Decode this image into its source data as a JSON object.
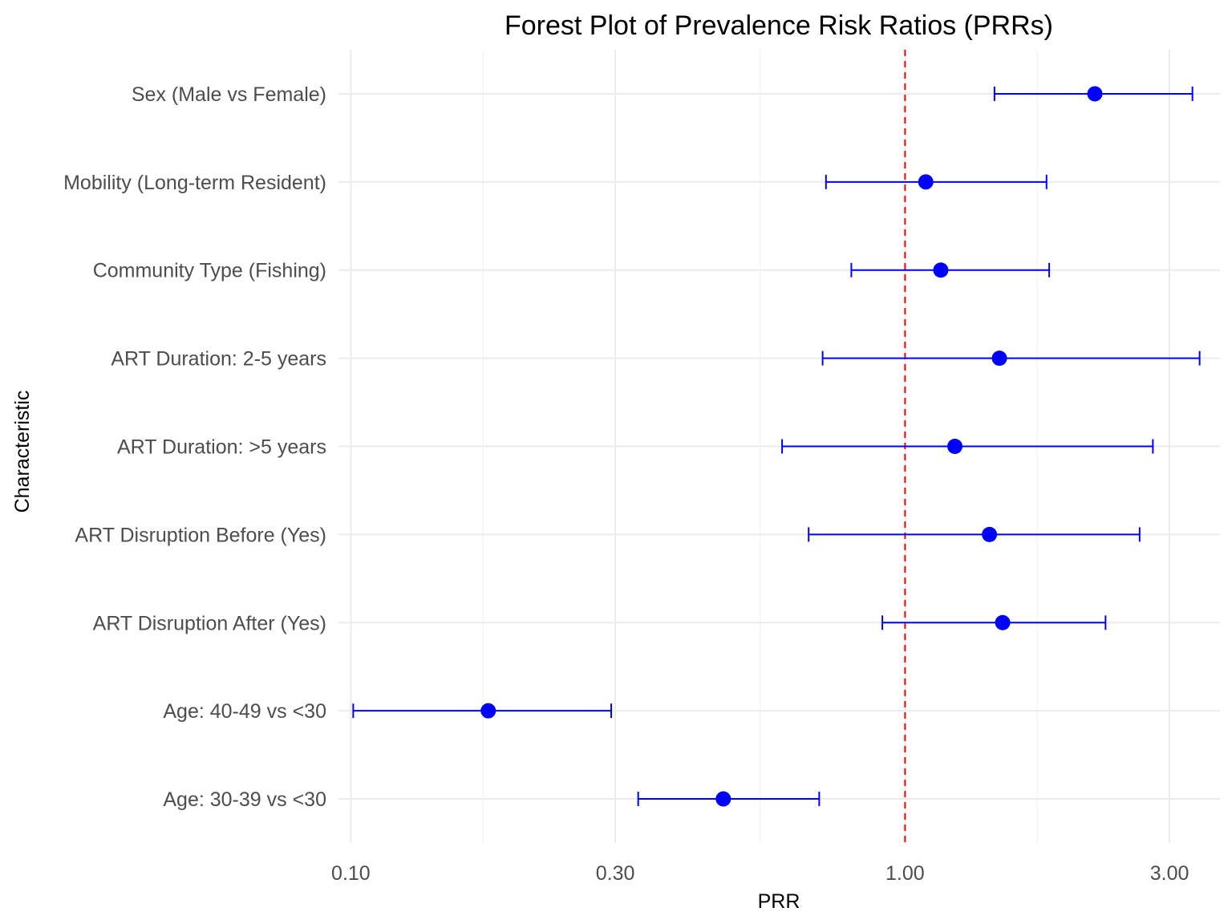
{
  "chart_data": {
    "type": "forest",
    "title": "Forest Plot of Prevalence Risk Ratios (PRRs)",
    "xlabel": "PRR",
    "ylabel": "Characteristic",
    "x_scale": "log10",
    "xlim": [
      0.095,
      3.7
    ],
    "x_ticks": [
      0.1,
      0.3,
      1.0,
      3.0
    ],
    "x_tick_labels": [
      "0.10",
      "0.30",
      "1.00",
      "3.00"
    ],
    "reference_line": 1.0,
    "reference_color": "#ff0000",
    "point_color": "#0000ff",
    "grid": true,
    "rows": [
      {
        "label": "Sex (Male vs Female)",
        "estimate": 2.2,
        "lower": 1.45,
        "upper": 3.3
      },
      {
        "label": "Mobility (Long-term Resident)",
        "estimate": 1.09,
        "lower": 0.72,
        "upper": 1.8
      },
      {
        "label": "Community Type (Fishing)",
        "estimate": 1.16,
        "lower": 0.8,
        "upper": 1.82
      },
      {
        "label": "ART Duration: 2-5 years",
        "estimate": 1.48,
        "lower": 0.71,
        "upper": 3.4
      },
      {
        "label": "ART Duration: >5 years",
        "estimate": 1.23,
        "lower": 0.6,
        "upper": 2.8
      },
      {
        "label": "ART Disruption Before (Yes)",
        "estimate": 1.42,
        "lower": 0.67,
        "upper": 2.65
      },
      {
        "label": "ART Disruption After (Yes)",
        "estimate": 1.5,
        "lower": 0.91,
        "upper": 2.3
      },
      {
        "label": "Age: 40-49 vs <30",
        "estimate": 0.177,
        "lower": 0.101,
        "upper": 0.295
      },
      {
        "label": "Age: 30-39 vs <30",
        "estimate": 0.47,
        "lower": 0.33,
        "upper": 0.7
      }
    ]
  }
}
